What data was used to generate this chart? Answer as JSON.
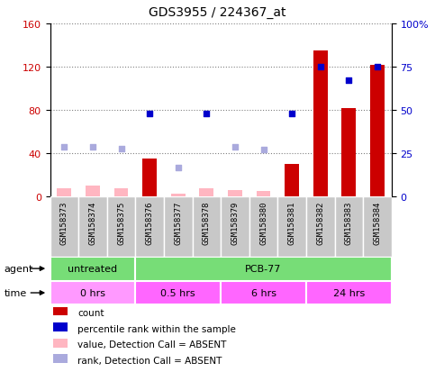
{
  "title": "GDS3955 / 224367_at",
  "samples": [
    "GSM158373",
    "GSM158374",
    "GSM158375",
    "GSM158376",
    "GSM158377",
    "GSM158378",
    "GSM158379",
    "GSM158380",
    "GSM158381",
    "GSM158382",
    "GSM158383",
    "GSM158384"
  ],
  "count_values": [
    8,
    10,
    8,
    35,
    3,
    8,
    6,
    5,
    30,
    135,
    82,
    122
  ],
  "count_absent": [
    true,
    true,
    true,
    false,
    true,
    true,
    true,
    true,
    false,
    false,
    false,
    false
  ],
  "rank_values": [
    29,
    29,
    28,
    48,
    17,
    48,
    29,
    27,
    48,
    75,
    67,
    75
  ],
  "rank_absent": [
    true,
    true,
    true,
    false,
    true,
    false,
    true,
    true,
    false,
    false,
    false,
    false
  ],
  "ylim_left": [
    0,
    160
  ],
  "ylim_right": [
    0,
    100
  ],
  "yticks_left": [
    0,
    40,
    80,
    120,
    160
  ],
  "ytick_labels_left": [
    "0",
    "40",
    "80",
    "120",
    "160"
  ],
  "yticks_right": [
    0,
    25,
    50,
    75,
    100
  ],
  "ytick_labels_right": [
    "0",
    "25",
    "50",
    "75",
    "100%"
  ],
  "color_count_present": "#CC0000",
  "color_count_absent": "#FFB6C1",
  "color_rank_present": "#0000CC",
  "color_rank_absent": "#AAAADD",
  "agent_groups": [
    {
      "label": "untreated",
      "start": 0,
      "end": 3,
      "color": "#77DD77"
    },
    {
      "label": "PCB-77",
      "start": 3,
      "end": 12,
      "color": "#77DD77"
    }
  ],
  "time_groups": [
    {
      "label": "0 hrs",
      "start": 0,
      "end": 3,
      "color": "#FF99FF"
    },
    {
      "label": "0.5 hrs",
      "start": 3,
      "end": 6,
      "color": "#FF66FF"
    },
    {
      "label": "6 hrs",
      "start": 6,
      "end": 9,
      "color": "#FF66FF"
    },
    {
      "label": "24 hrs",
      "start": 9,
      "end": 12,
      "color": "#FF66FF"
    }
  ],
  "legend_items": [
    {
      "color": "#CC0000",
      "label": "count"
    },
    {
      "color": "#0000CC",
      "label": "percentile rank within the sample"
    },
    {
      "color": "#FFB6C1",
      "label": "value, Detection Call = ABSENT"
    },
    {
      "color": "#AAAADD",
      "label": "rank, Detection Call = ABSENT"
    }
  ],
  "gray_box_color": "#C8C8C8",
  "plot_bg_color": "#FFFFFF"
}
